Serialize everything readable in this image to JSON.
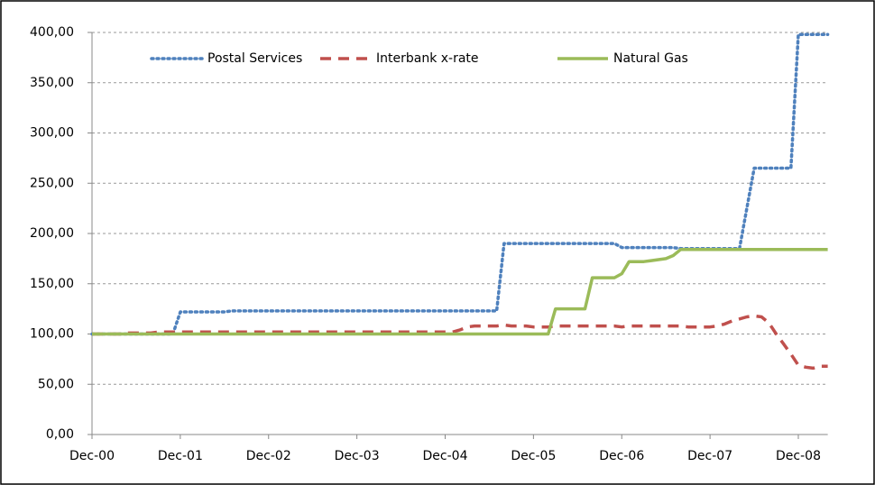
{
  "chart_data": {
    "type": "line",
    "categories": [
      "Dec-00",
      null,
      null,
      null,
      null,
      null,
      null,
      null,
      null,
      null,
      null,
      null,
      "Dec-01",
      null,
      null,
      null,
      null,
      null,
      null,
      null,
      null,
      null,
      null,
      null,
      "Dec-02",
      null,
      null,
      null,
      null,
      null,
      null,
      null,
      null,
      null,
      null,
      null,
      "Dec-03",
      null,
      null,
      null,
      null,
      null,
      null,
      null,
      null,
      null,
      null,
      null,
      "Dec-04",
      null,
      null,
      null,
      null,
      null,
      null,
      null,
      null,
      null,
      null,
      null,
      "Dec-05",
      null,
      null,
      null,
      null,
      null,
      null,
      null,
      null,
      null,
      null,
      null,
      "Dec-06",
      null,
      null,
      null,
      null,
      null,
      null,
      null,
      null,
      null,
      null,
      null,
      "Dec-07",
      null,
      null,
      null,
      null,
      null,
      null,
      null,
      null,
      null,
      null,
      null,
      "Dec-08",
      null,
      null,
      null,
      null
    ],
    "series": [
      {
        "name": "Postal Services",
        "color": "#4f81bd",
        "style": "dotted",
        "values": [
          100,
          100,
          100,
          100,
          100,
          100,
          100,
          100,
          100,
          100,
          100,
          100,
          122,
          122,
          122,
          122,
          122,
          122,
          122,
          123,
          123,
          123,
          123,
          123,
          123,
          123,
          123,
          123,
          123,
          123,
          123,
          123,
          123,
          123,
          123,
          123,
          123,
          123,
          123,
          123,
          123,
          123,
          123,
          123,
          123,
          123,
          123,
          123,
          123,
          123,
          123,
          123,
          123,
          123,
          123,
          123,
          190,
          190,
          190,
          190,
          190,
          190,
          190,
          190,
          190,
          190,
          190,
          190,
          190,
          190,
          190,
          190,
          186,
          186,
          186,
          186,
          186,
          186,
          186,
          186,
          185,
          185,
          185,
          185,
          185,
          185,
          185,
          185,
          185,
          225,
          265,
          265,
          265,
          265,
          265,
          265,
          398,
          398,
          398,
          398,
          398
        ]
      },
      {
        "name": "Interbank x-rate",
        "color": "#c0504d",
        "style": "dashed",
        "values": [
          100,
          100,
          100,
          100,
          100,
          101,
          101,
          101,
          101,
          102,
          102,
          102,
          102,
          102,
          102,
          102,
          102,
          102,
          102,
          102,
          102,
          102,
          102,
          102,
          102,
          102,
          102,
          102,
          102,
          102,
          102,
          102,
          102,
          102,
          102,
          102,
          102,
          102,
          102,
          102,
          102,
          102,
          102,
          102,
          102,
          102,
          102,
          102,
          102,
          102,
          104,
          107,
          108,
          108,
          108,
          108,
          109,
          108,
          108,
          108,
          107,
          107,
          107,
          108,
          108,
          108,
          108,
          108,
          108,
          108,
          108,
          108,
          107,
          108,
          108,
          108,
          108,
          108,
          108,
          108,
          108,
          107,
          107,
          107,
          107,
          108,
          110,
          113,
          115,
          117,
          118,
          117,
          111,
          100,
          90,
          80,
          69,
          67,
          66,
          68,
          68
        ]
      },
      {
        "name": "Natural Gas",
        "color": "#9bbb59",
        "style": "solid",
        "values": [
          100,
          100,
          100,
          100,
          100,
          100,
          100,
          100,
          100,
          100,
          100,
          100,
          100,
          100,
          100,
          100,
          100,
          100,
          100,
          100,
          100,
          100,
          100,
          100,
          100,
          100,
          100,
          100,
          100,
          100,
          100,
          100,
          100,
          100,
          100,
          100,
          100,
          100,
          100,
          100,
          100,
          100,
          100,
          100,
          100,
          100,
          100,
          100,
          100,
          100,
          100,
          100,
          100,
          100,
          100,
          100,
          100,
          100,
          100,
          100,
          100,
          100,
          100,
          125,
          125,
          125,
          125,
          125,
          156,
          156,
          156,
          156,
          160,
          172,
          172,
          172,
          173,
          174,
          175,
          178,
          184,
          184,
          184,
          184,
          184,
          184,
          184,
          184,
          184,
          184,
          184,
          184,
          184,
          184,
          184,
          184,
          184,
          184,
          184,
          184,
          184
        ]
      }
    ],
    "ylim": [
      0,
      400
    ],
    "yticks": [
      {
        "value": 0,
        "label": "0,00"
      },
      {
        "value": 50,
        "label": "50,00"
      },
      {
        "value": 100,
        "label": "100,00"
      },
      {
        "value": 150,
        "label": "150,00"
      },
      {
        "value": 200,
        "label": "200,00"
      },
      {
        "value": 250,
        "label": "250,00"
      },
      {
        "value": 300,
        "label": "300,00"
      },
      {
        "value": 350,
        "label": "350,00"
      },
      {
        "value": 400,
        "label": "400,00"
      }
    ],
    "grid": true,
    "legend": "top"
  }
}
